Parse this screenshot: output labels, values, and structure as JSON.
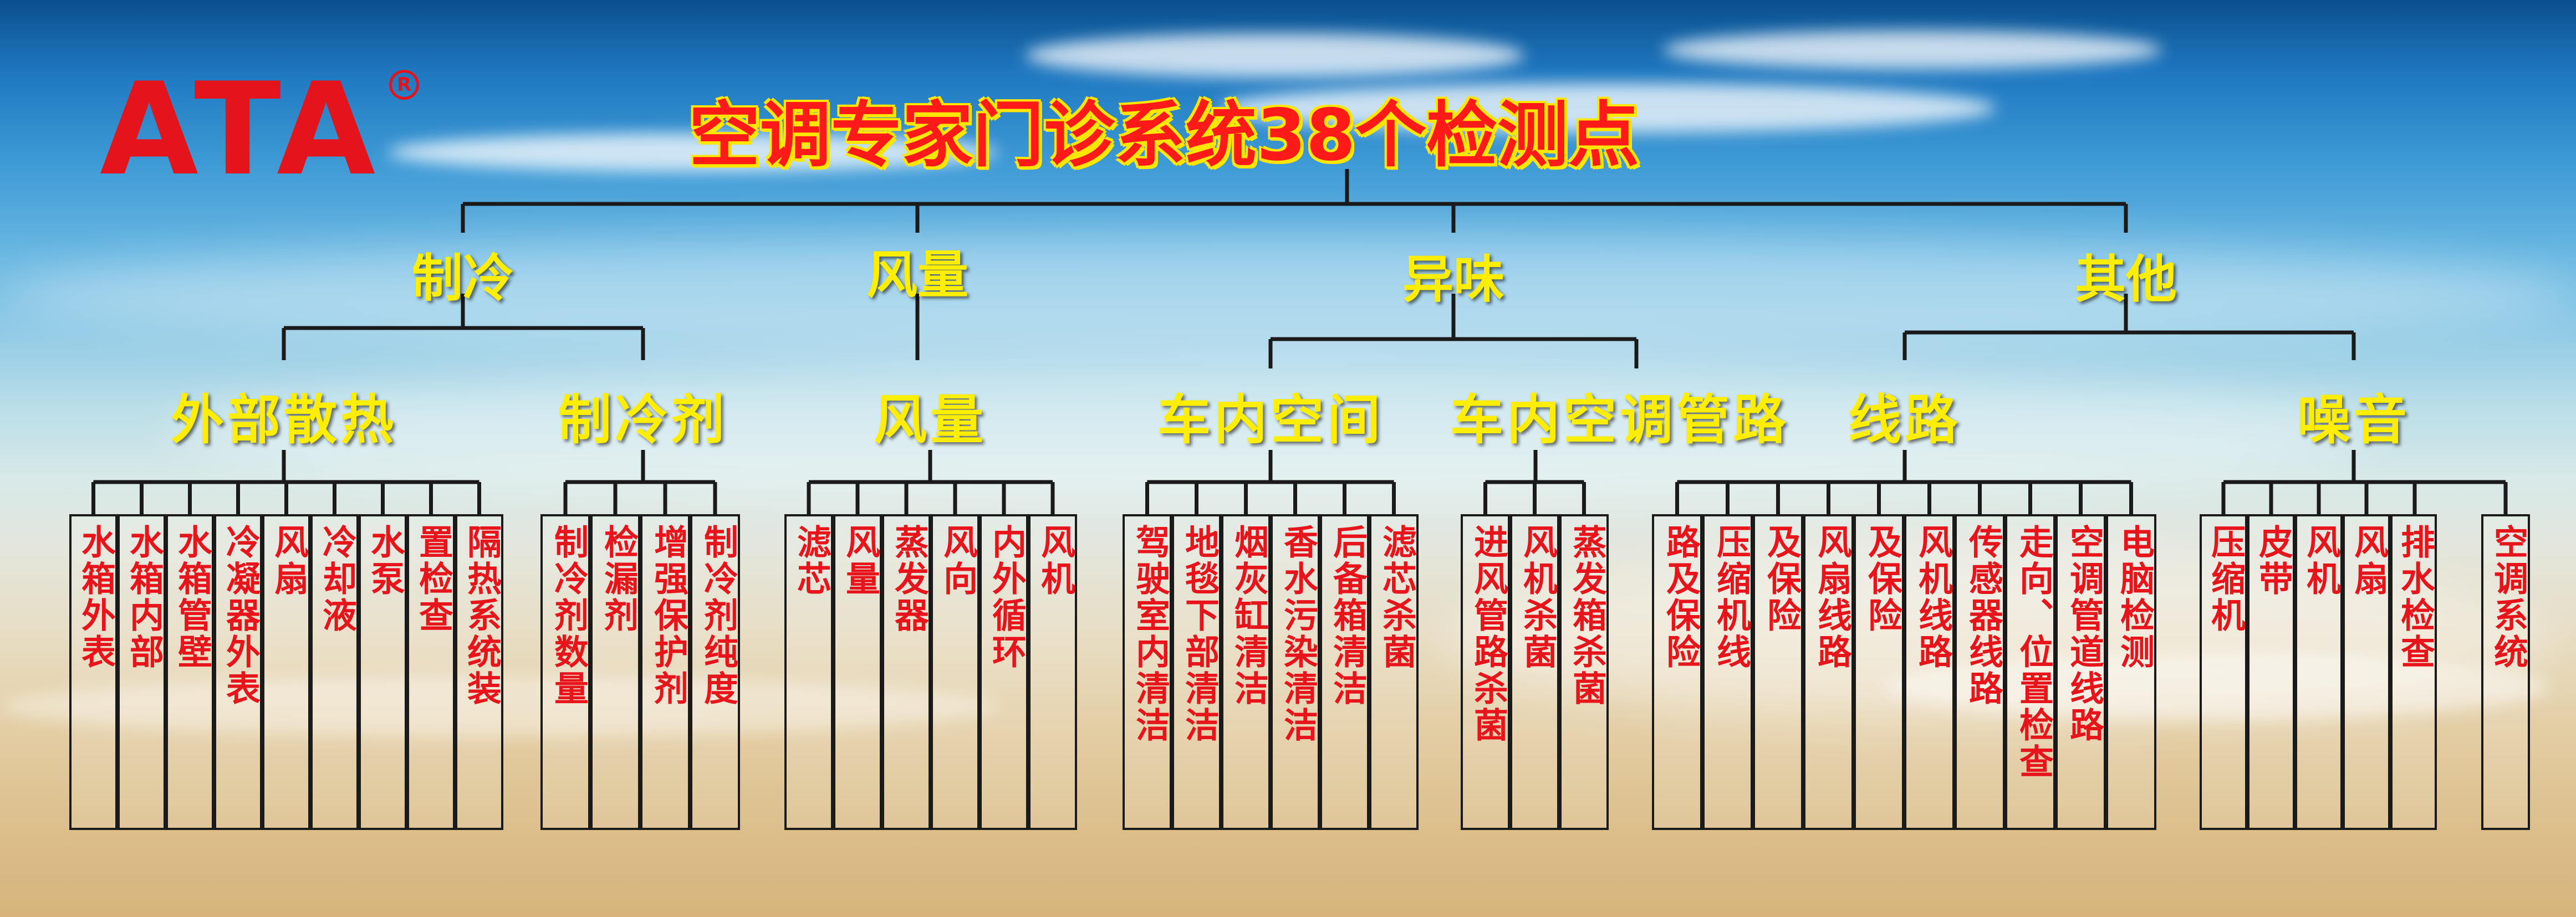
{
  "logo": "ATA",
  "title": "空调专家门诊系统38个检测点",
  "categories": [
    "制冷",
    "风量",
    "异味",
    "其他"
  ],
  "groups": [
    {
      "label": "外部散热",
      "leaves": [
        "水箱外表",
        "水箱内部",
        "水箱管壁",
        "冷凝器外表",
        "风扇",
        "冷却液",
        "水泵",
        "置检查",
        "隔热系统装"
      ]
    },
    {
      "label": "制冷剂",
      "leaves": [
        "制冷剂数量",
        "检漏剂",
        "增强保护剂",
        "制冷剂纯度"
      ]
    },
    {
      "label": "风量",
      "leaves": [
        "滤芯",
        "风量",
        "蒸发器",
        "风向",
        "内外循环",
        "风机"
      ]
    },
    {
      "label": "车内空间",
      "leaves": [
        "驾驶室内清洁",
        "地毯下部清洁",
        "烟灰缸清洁",
        "香水污染清洁",
        "后备箱清洁",
        "滤芯杀菌"
      ]
    },
    {
      "label": "车内空调管路",
      "leaves": [
        "进风管路杀菌",
        "风机杀菌",
        "蒸发箱杀菌"
      ]
    },
    {
      "label": "线路",
      "leaves": [
        "路及保险",
        "压缩机线",
        "及保险",
        "风扇线路",
        "及保险",
        "风机线路",
        "传感器线路",
        "走向、位置检查",
        "空调管道线路",
        "电脑检测"
      ]
    },
    {
      "label": "噪音",
      "leaves": [
        "压缩机",
        "皮带",
        "风机",
        "风扇",
        "排水检查",
        "空调系统"
      ]
    }
  ],
  "colors": {
    "lines": "#1a1a1a",
    "leaf_text": "#e8141b",
    "labels": "#ffee00",
    "title": "#ff1a1a",
    "logo": "#e3141b"
  }
}
